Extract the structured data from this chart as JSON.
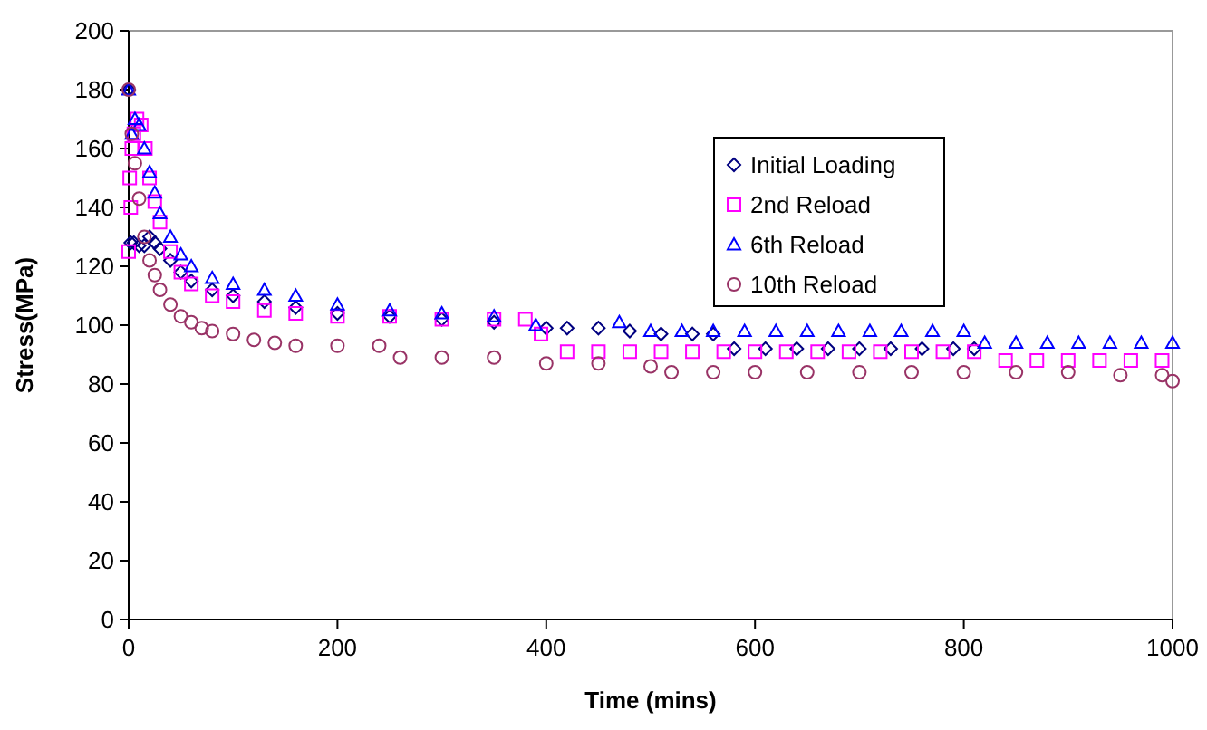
{
  "chart_data": {
    "type": "scatter",
    "xlabel": "Time (mins)",
    "ylabel": "Stress(MPa)",
    "xlim": [
      0,
      1000
    ],
    "xticks": [
      0,
      200,
      400,
      600,
      800,
      1000
    ],
    "ylim": [
      0,
      200
    ],
    "yticks": [
      0,
      20,
      40,
      60,
      80,
      100,
      120,
      140,
      160,
      180,
      200
    ],
    "grid": false,
    "legend": "top right",
    "series": [
      {
        "name": "Initial Loading",
        "color": "#000080",
        "marker": "diamond",
        "x": [
          0,
          2,
          5,
          10,
          15,
          20,
          25,
          30,
          40,
          50,
          60,
          80,
          100,
          130,
          160,
          200,
          250,
          300,
          350,
          400,
          420,
          450,
          480,
          510,
          540,
          560,
          580,
          610,
          640,
          670,
          700,
          730,
          760,
          790,
          810
        ],
        "values": [
          180,
          128,
          128,
          127,
          127,
          130,
          128,
          126,
          122,
          118,
          115,
          112,
          110,
          108,
          106,
          104,
          103,
          102,
          101,
          99,
          99,
          99,
          98,
          97,
          97,
          97,
          92,
          92,
          92,
          92,
          92,
          92,
          92,
          92,
          92
        ]
      },
      {
        "name": "2nd Reload",
        "color": "#ff00ff",
        "marker": "square",
        "x": [
          0,
          1,
          2,
          3,
          5,
          8,
          12,
          16,
          20,
          25,
          30,
          40,
          50,
          60,
          80,
          100,
          130,
          160,
          200,
          250,
          300,
          350,
          380,
          395,
          420,
          450,
          480,
          510,
          540,
          570,
          600,
          630,
          660,
          690,
          720,
          750,
          780,
          810,
          840,
          870,
          900,
          930,
          960,
          990
        ],
        "values": [
          125,
          150,
          140,
          160,
          165,
          170,
          168,
          160,
          150,
          142,
          135,
          125,
          118,
          114,
          110,
          108,
          105,
          104,
          103,
          103,
          102,
          102,
          102,
          97,
          91,
          91,
          91,
          91,
          91,
          91,
          91,
          91,
          91,
          91,
          91,
          91,
          91,
          91,
          88,
          88,
          88,
          88,
          88,
          88
        ]
      },
      {
        "name": "6th Reload",
        "color": "#0000ff",
        "marker": "triangle",
        "x": [
          0,
          3,
          6,
          10,
          15,
          20,
          25,
          30,
          40,
          50,
          60,
          80,
          100,
          130,
          160,
          200,
          250,
          300,
          350,
          390,
          470,
          500,
          530,
          560,
          590,
          620,
          650,
          680,
          710,
          740,
          770,
          800,
          820,
          850,
          880,
          910,
          940,
          970,
          1000
        ],
        "values": [
          180,
          165,
          170,
          168,
          160,
          152,
          145,
          138,
          130,
          124,
          120,
          116,
          114,
          112,
          110,
          107,
          105,
          104,
          103,
          100,
          101,
          98,
          98,
          98,
          98,
          98,
          98,
          98,
          98,
          98,
          98,
          98,
          94,
          94,
          94,
          94,
          94,
          94,
          94
        ]
      },
      {
        "name": "10th Reload",
        "color": "#993366",
        "marker": "circle",
        "x": [
          0,
          3,
          6,
          10,
          15,
          20,
          25,
          30,
          40,
          50,
          60,
          70,
          80,
          100,
          120,
          140,
          160,
          200,
          240,
          260,
          300,
          350,
          400,
          450,
          500,
          520,
          560,
          600,
          650,
          700,
          750,
          800,
          850,
          900,
          950,
          990,
          1000
        ],
        "values": [
          180,
          165,
          155,
          143,
          130,
          122,
          117,
          112,
          107,
          103,
          101,
          99,
          98,
          97,
          95,
          94,
          93,
          93,
          93,
          89,
          89,
          89,
          87,
          87,
          86,
          84,
          84,
          84,
          84,
          84,
          84,
          84,
          84,
          84,
          83,
          83,
          81
        ]
      }
    ]
  }
}
